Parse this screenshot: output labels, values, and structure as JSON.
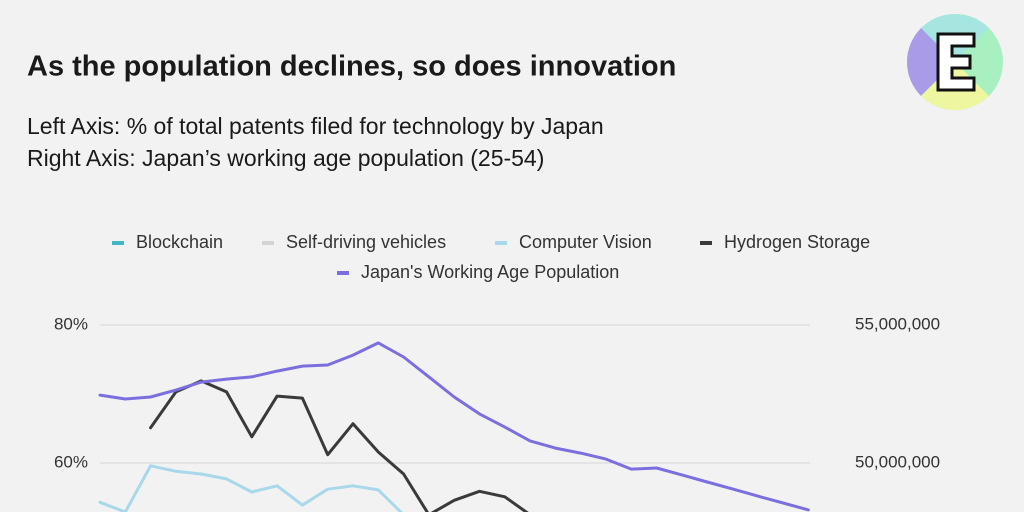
{
  "chart_data": {
    "type": "line",
    "title": "As the population declines, so does innovation",
    "subtitle": [
      "Left Axis: % of total patents filed for technology by Japan",
      "Right Axis: Japan’s working age population (25-54)"
    ],
    "categories": [
      null,
      null,
      null,
      null,
      null,
      null,
      null,
      null,
      null,
      null,
      null,
      null,
      null,
      null,
      null,
      null,
      null,
      null,
      null,
      null,
      null,
      null,
      null,
      null,
      null,
      null,
      null,
      null,
      null
    ],
    "series": [
      {
        "name": "Blockchain",
        "color": "#3fb8c4",
        "values": [
          null,
          null,
          null,
          null,
          null,
          null,
          null,
          null,
          null,
          null,
          null,
          null,
          null,
          null,
          null,
          null,
          null,
          null,
          null,
          null,
          null,
          null,
          null,
          null,
          null,
          null,
          null,
          null,
          null
        ]
      },
      {
        "name": "Self-driving vehicles",
        "color": "#d4d4d4",
        "values": [
          null,
          null,
          null,
          null,
          null,
          null,
          null,
          null,
          null,
          null,
          null,
          null,
          null,
          null,
          null,
          null,
          null,
          null,
          null,
          null,
          null,
          null,
          null,
          null,
          null,
          null,
          null,
          null,
          null
        ]
      },
      {
        "name": "Computer Vision",
        "color": "#a8d8ea",
        "values": [
          54.3,
          52.9,
          59.6,
          58.8,
          58.4,
          57.7,
          55.8,
          56.7,
          53.9,
          56.2,
          56.7,
          56.1,
          52.5,
          null,
          null,
          null,
          null,
          null,
          null,
          null,
          null,
          null,
          null,
          null,
          null,
          null,
          null,
          null,
          null
        ]
      },
      {
        "name": "Hydrogen Storage",
        "color": "#3a3a3a",
        "values": [
          null,
          null,
          65.1,
          70.3,
          71.9,
          70.3,
          63.8,
          69.7,
          69.4,
          61.2,
          65.7,
          61.6,
          58.4,
          52.5,
          54.6,
          55.9,
          55.1,
          52.5,
          null,
          null,
          null,
          null,
          null,
          null,
          null,
          null,
          null,
          null,
          null
        ]
      },
      {
        "name": "Japan's Working Age Population",
        "color": "#7b6fe0",
        "axis": "y2",
        "values": [
          52460000,
          52320000,
          52390000,
          52640000,
          52930000,
          53040000,
          53120000,
          53330000,
          53510000,
          53550000,
          53910000,
          54350000,
          53840000,
          53120000,
          52390000,
          51780000,
          51300000,
          50800000,
          50540000,
          50360000,
          50140000,
          49780000,
          49820000,
          49570000,
          49310000,
          49060000,
          48800000,
          48550000,
          48300000
        ]
      }
    ],
    "ylim": [
      53,
      80
    ],
    "yticks": [
      {
        "value": 60,
        "label": "60%"
      },
      {
        "value": 80,
        "label": "80%"
      }
    ],
    "y2lim": [
      48250000,
      55000000
    ],
    "y2ticks": [
      {
        "value": 50000000,
        "label": "50,000,000"
      },
      {
        "value": 55000000,
        "label": "55,000,000"
      }
    ],
    "grid": true
  }
}
